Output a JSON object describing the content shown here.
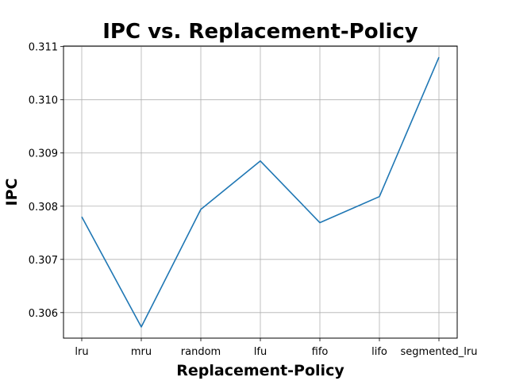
{
  "chart_data": {
    "type": "line",
    "title": "IPC vs. Replacement-Policy",
    "xlabel": "Replacement-Policy",
    "ylabel": "IPC",
    "categories": [
      "lru",
      "mru",
      "random",
      "lfu",
      "fifo",
      "lifo",
      "segmented_lru"
    ],
    "series": [
      {
        "values": [
          0.3078,
          0.30573,
          0.30794,
          0.30885,
          0.30769,
          0.30818,
          0.3108
        ],
        "color": "#1f77b4"
      }
    ],
    "ylim": [
      0.30552,
      0.31101
    ],
    "yticks": [
      0.306,
      0.307,
      0.308,
      0.309,
      0.31,
      0.311
    ],
    "ytick_labels": [
      "0.306",
      "0.307",
      "0.308",
      "0.309",
      "0.310",
      "0.311"
    ],
    "grid": true
  }
}
